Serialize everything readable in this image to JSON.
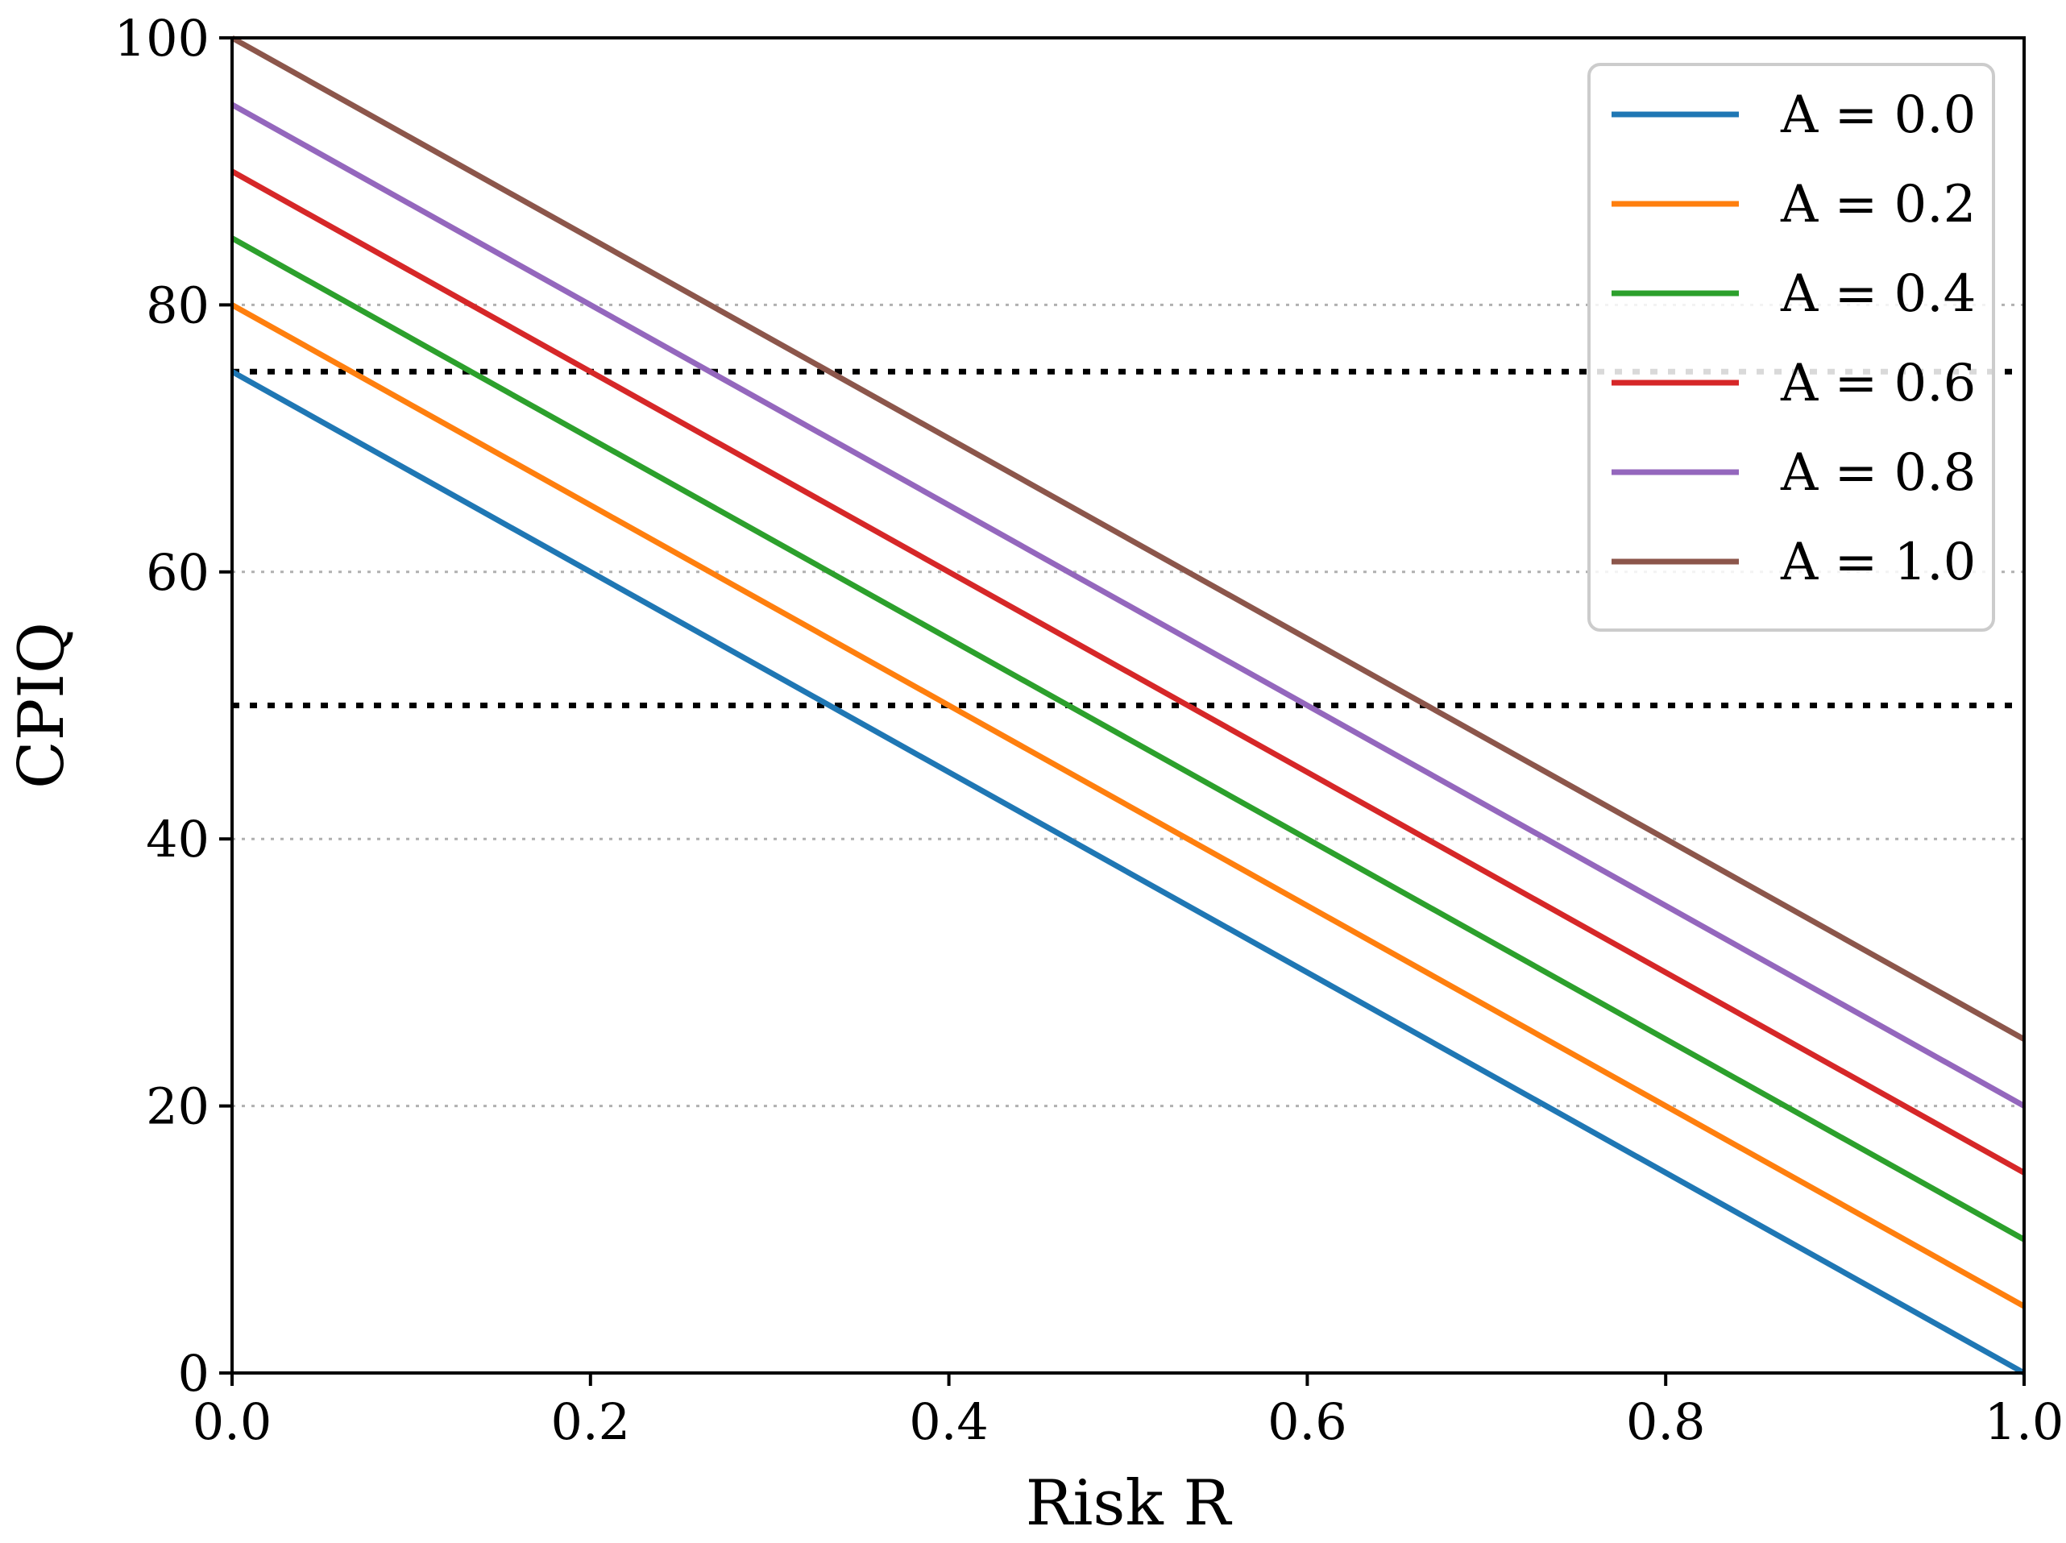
{
  "chart_data": {
    "type": "line",
    "title": "",
    "xlabel": "Risk R",
    "ylabel": "CPIQ",
    "xlim": [
      0.0,
      1.0
    ],
    "ylim": [
      0,
      100
    ],
    "xticks": [
      0.0,
      0.2,
      0.4,
      0.6,
      0.8,
      1.0
    ],
    "xtick_labels": [
      "0.0",
      "0.2",
      "0.4",
      "0.6",
      "0.8",
      "1.0"
    ],
    "yticks": [
      0,
      20,
      40,
      60,
      80,
      100
    ],
    "ytick_labels": [
      "0",
      "20",
      "40",
      "60",
      "80",
      "100"
    ],
    "grid": "horizontal dotted at y ticks",
    "legend_position": "top-right",
    "series": [
      {
        "name": "A = 0.0",
        "color": "#1f77b4",
        "x": [
          0.0,
          1.0
        ],
        "y": [
          75,
          0
        ]
      },
      {
        "name": "A = 0.2",
        "color": "#ff7f0e",
        "x": [
          0.0,
          1.0
        ],
        "y": [
          80,
          5
        ]
      },
      {
        "name": "A = 0.4",
        "color": "#2ca02c",
        "x": [
          0.0,
          1.0
        ],
        "y": [
          85,
          10
        ]
      },
      {
        "name": "A = 0.6",
        "color": "#d62728",
        "x": [
          0.0,
          1.0
        ],
        "y": [
          90,
          15
        ]
      },
      {
        "name": "A = 0.8",
        "color": "#9467bd",
        "x": [
          0.0,
          1.0
        ],
        "y": [
          95,
          20
        ]
      },
      {
        "name": "A = 1.0",
        "color": "#8c564b",
        "x": [
          0.0,
          1.0
        ],
        "y": [
          100,
          25
        ]
      }
    ],
    "reference_lines": [
      {
        "y": 75,
        "style": "dotted",
        "color": "#000000"
      },
      {
        "y": 50,
        "style": "dotted",
        "color": "#000000"
      }
    ]
  }
}
